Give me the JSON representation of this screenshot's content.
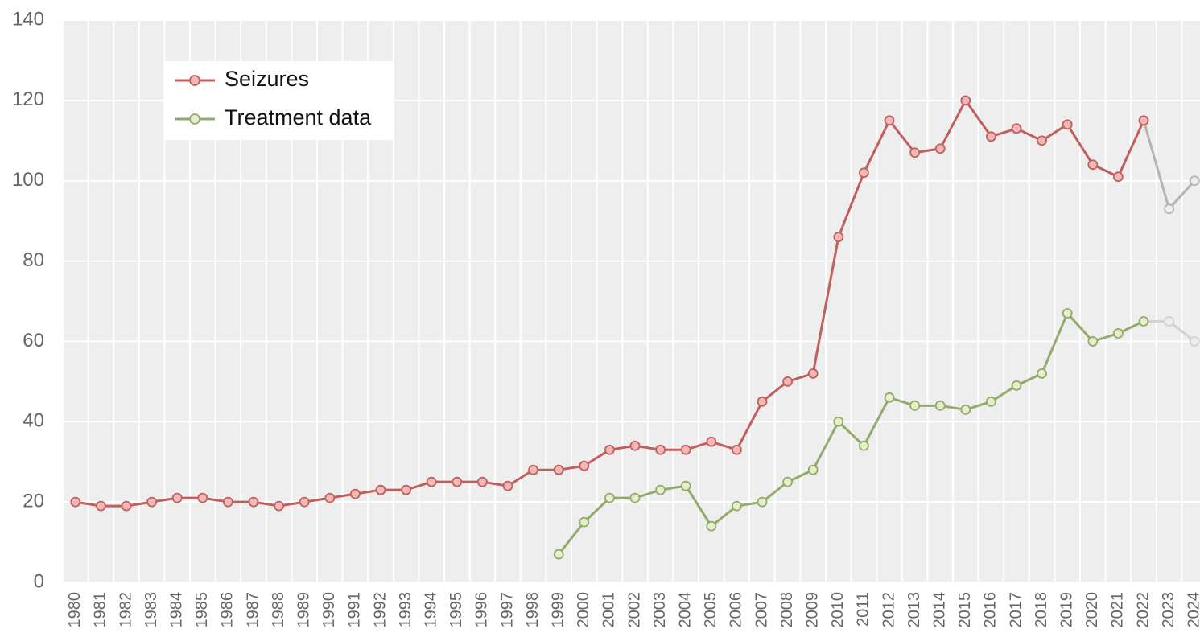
{
  "chart_data": {
    "type": "line",
    "categories": [
      "1980",
      "1981",
      "1982",
      "1983",
      "1984",
      "1985",
      "1986",
      "1987",
      "1988",
      "1989",
      "1990",
      "1991",
      "1992",
      "1993",
      "1994",
      "1995",
      "1996",
      "1997",
      "1998",
      "1999",
      "2000",
      "2001",
      "2002",
      "2003",
      "2004",
      "2005",
      "2006",
      "2007",
      "2008",
      "2009",
      "2010",
      "2011",
      "2012",
      "2013",
      "2014",
      "2015",
      "2016",
      "2017",
      "2018",
      "2019",
      "2020",
      "2021",
      "2022",
      "2023",
      "2024"
    ],
    "series": [
      {
        "name": "Seizures",
        "color": "#c0605e",
        "marker_fill": "#f2b8b6",
        "faded_color": "#b4b4b4",
        "values": [
          20,
          19,
          19,
          20,
          21,
          21,
          20,
          20,
          19,
          20,
          21,
          22,
          23,
          23,
          25,
          25,
          25,
          24,
          28,
          28,
          29,
          33,
          34,
          33,
          33,
          35,
          33,
          45,
          50,
          52,
          86,
          102,
          115,
          107,
          108,
          120,
          111,
          113,
          110,
          114,
          104,
          101,
          115,
          93,
          100
        ]
      },
      {
        "name": "Treatment data",
        "color": "#93ab6a",
        "marker_fill": "#e4f0cc",
        "faded_color": "#d2d2d2",
        "values": [
          null,
          null,
          null,
          null,
          null,
          null,
          null,
          null,
          null,
          null,
          null,
          null,
          null,
          null,
          null,
          null,
          null,
          null,
          null,
          7,
          15,
          21,
          21,
          23,
          24,
          14,
          19,
          20,
          25,
          28,
          40,
          34,
          46,
          44,
          44,
          43,
          45,
          49,
          52,
          67,
          60,
          62,
          65,
          65,
          60
        ]
      }
    ],
    "faded_categories": [
      "2023",
      "2024"
    ],
    "ylim": [
      0,
      140
    ],
    "yticks": [
      0,
      20,
      40,
      60,
      80,
      100,
      120,
      140
    ],
    "grid": true,
    "legend": "upper left"
  }
}
